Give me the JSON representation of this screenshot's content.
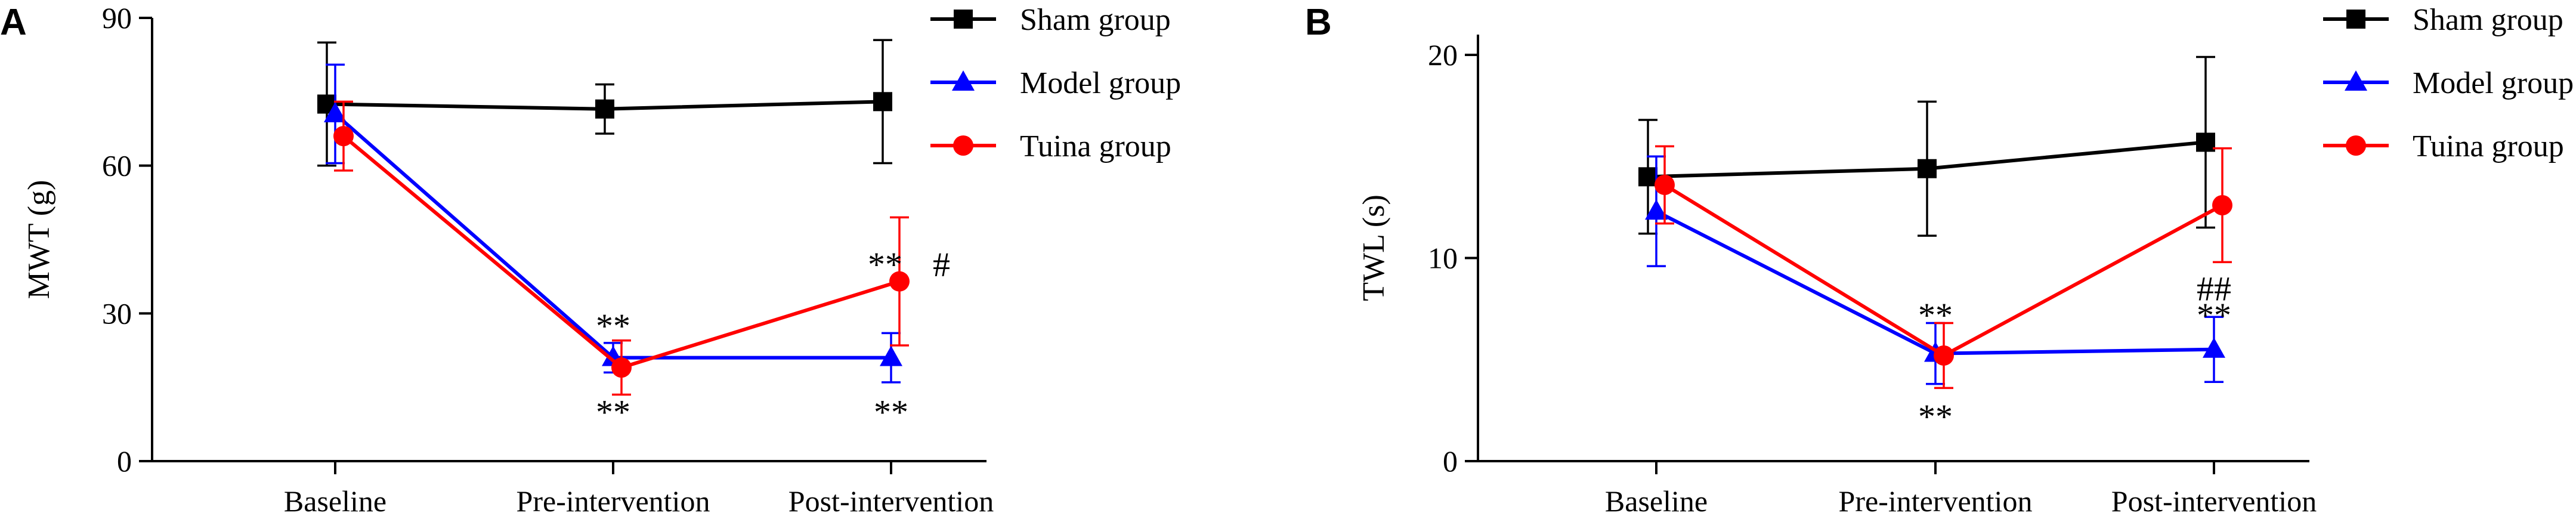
{
  "chart_data": [
    {
      "type": "line",
      "panel": "A",
      "ylabel": "MWT (g)",
      "xlabel": "",
      "categories": [
        "Baseline",
        "Pre-intervention",
        "Post-intervention"
      ],
      "ylim": [
        0,
        90
      ],
      "yticks": [
        0,
        30,
        60,
        90
      ],
      "legend": "top-right",
      "series": [
        {
          "name": "Sham group",
          "color": "#000000",
          "marker": "square",
          "values": [
            72.5,
            71.5,
            73
          ],
          "errors": [
            12.5,
            5,
            12.5
          ]
        },
        {
          "name": "Model group",
          "color": "#0000ff",
          "marker": "triangle",
          "values": [
            70.5,
            21,
            21
          ],
          "errors": [
            10,
            3,
            5
          ]
        },
        {
          "name": "Tuina group",
          "color": "#ff0000",
          "marker": "circle",
          "values": [
            66,
            19,
            36.5
          ],
          "errors": [
            7,
            5.5,
            13
          ]
        }
      ],
      "annotations": [
        {
          "text": "**",
          "category": 1,
          "y": 27.5
        },
        {
          "text": "**",
          "category": 1,
          "y": 10
        },
        {
          "text": "**",
          "category": 2,
          "y": 40
        },
        {
          "text": "#",
          "category": 2,
          "y": 40,
          "dx": 1
        },
        {
          "text": "**",
          "category": 2,
          "y": 10
        }
      ]
    },
    {
      "type": "line",
      "panel": "B",
      "ylabel": "TWL (s)",
      "xlabel": "",
      "categories": [
        "Baseline",
        "Pre-intervention",
        "Post-intervention"
      ],
      "ylim": [
        0,
        21
      ],
      "yticks": [
        0,
        10,
        20
      ],
      "legend": "top-right",
      "series": [
        {
          "name": "Sham group",
          "color": "#000000",
          "marker": "square",
          "values": [
            14,
            14.4,
            15.7
          ],
          "errors": [
            2.8,
            3.3,
            4.2
          ]
        },
        {
          "name": "Model group",
          "color": "#0000ff",
          "marker": "triangle",
          "values": [
            12.3,
            5.3,
            5.5
          ],
          "errors": [
            2.7,
            1.5,
            1.6
          ]
        },
        {
          "name": "Tuina group",
          "color": "#ff0000",
          "marker": "circle",
          "values": [
            13.6,
            5.2,
            12.6
          ],
          "errors": [
            1.9,
            1.6,
            2.8
          ]
        }
      ],
      "annotations": [
        {
          "text": "**",
          "category": 1,
          "y": 7.2
        },
        {
          "text": "**",
          "category": 1,
          "y": 2.2
        },
        {
          "text": "##",
          "category": 2,
          "y": 8.5
        },
        {
          "text": "**",
          "category": 2,
          "y": 7.2
        }
      ]
    }
  ]
}
